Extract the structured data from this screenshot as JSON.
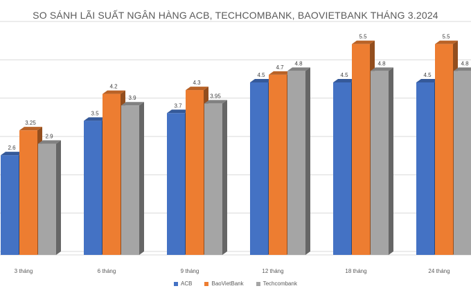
{
  "chart_data": {
    "type": "bar",
    "title": "SO SÁNH LÃI SUẤT NGÂN HÀNG ACB, TECHCOMBANK, BAOVIETBANK THÁNG 3.2024",
    "categories": [
      "3 tháng",
      "6 tháng",
      "9 tháng",
      "12 tháng",
      "18 tháng",
      "24 tháng"
    ],
    "series": [
      {
        "name": "ACB",
        "color": "#4472C4",
        "values": [
          2.6,
          3.5,
          3.7,
          4.5,
          4.5,
          4.5
        ],
        "labels": [
          "2.6",
          "3.5",
          "3.7",
          "4.5",
          "4.5",
          "4.5"
        ]
      },
      {
        "name": "BaoVietBank",
        "color": "#ED7D31",
        "values": [
          3.25,
          4.2,
          4.3,
          4.7,
          5.5,
          5.5
        ],
        "labels": [
          "3.25",
          "4.2",
          "4.3",
          "4.7",
          "5.5",
          "5.5"
        ]
      },
      {
        "name": "Techcombank",
        "color": "#A5A5A5",
        "values": [
          2.9,
          3.9,
          3.95,
          4.8,
          4.8,
          4.8
        ],
        "labels": [
          "2.9",
          "3.9",
          "3.95",
          "4.8",
          "4.8",
          "4.8"
        ]
      }
    ],
    "ylim": [
      0,
      6
    ],
    "grid": true,
    "legend_position": "bottom"
  }
}
